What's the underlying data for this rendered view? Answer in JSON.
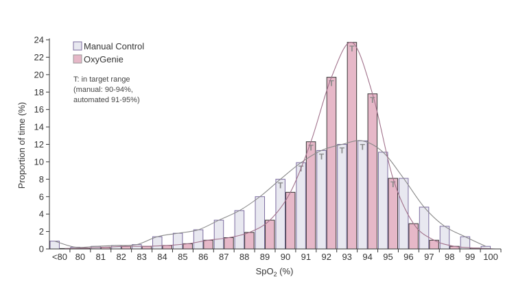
{
  "chart_data": {
    "type": "bar",
    "xlabel": "SpO2 (%)",
    "xlabel_main": "SpO",
    "xlabel_sub": "2",
    "xlabel_unit": " (%)",
    "ylabel": "Proportion of time (%)",
    "ylim": [
      0,
      24
    ],
    "yticks": [
      0,
      2,
      4,
      6,
      8,
      10,
      12,
      14,
      16,
      18,
      20,
      22,
      24
    ],
    "grid": false,
    "legend_placement": "top-left",
    "annotation": [
      "T: in target range",
      "(manual: 90-94%,",
      "automated 91-95%)"
    ],
    "target_marker": "T",
    "categories": [
      "<80",
      "80",
      "81",
      "82",
      "83",
      "84",
      "85",
      "86",
      "87",
      "88",
      "89",
      "90",
      "91",
      "92",
      "93",
      "94",
      "95",
      "96",
      "97",
      "98",
      "99",
      "100"
    ],
    "series": [
      {
        "name": "Manual Control",
        "color": "#e8e8f0",
        "edge": "#7a6a9e",
        "curve": "#888888",
        "values": [
          0.9,
          0.2,
          0.3,
          0.4,
          0.5,
          1.4,
          1.8,
          2.2,
          3.3,
          4.4,
          6.0,
          8.0,
          9.9,
          11.3,
          12.0,
          12.4,
          11.1,
          8.1,
          4.8,
          2.6,
          1.4,
          0.3
        ],
        "target": [
          "90",
          "91",
          "92",
          "93",
          "94"
        ]
      },
      {
        "name": "OxyGenie",
        "color": "#e6b8c8",
        "edge": "#333333",
        "curve": "#a0708a",
        "values": [
          0.05,
          0.1,
          0.2,
          0.3,
          0.3,
          0.4,
          0.6,
          1.0,
          1.3,
          1.9,
          3.3,
          6.5,
          12.3,
          19.7,
          23.7,
          17.8,
          8.1,
          2.9,
          1.0,
          0.3,
          0.1,
          0
        ],
        "target": [
          "91",
          "92",
          "93",
          "94",
          "95"
        ]
      }
    ]
  }
}
